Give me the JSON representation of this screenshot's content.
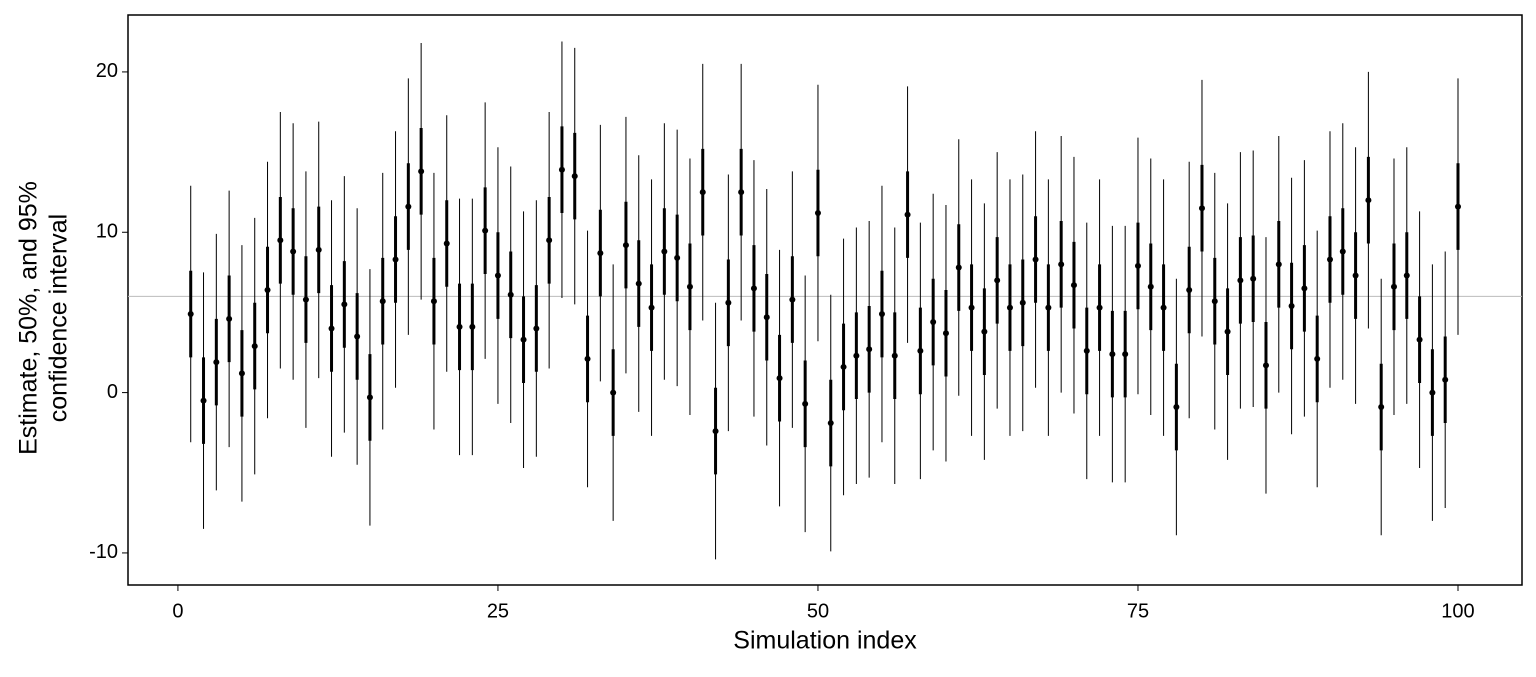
{
  "chart_data": {
    "type": "interval",
    "x_label": "Simulation index",
    "y_label": [
      "Estimate, 50%, and 95%",
      "confidence interval"
    ],
    "x": [
      1,
      2,
      3,
      4,
      5,
      6,
      7,
      8,
      9,
      10,
      11,
      12,
      13,
      14,
      15,
      16,
      17,
      18,
      19,
      20,
      21,
      22,
      23,
      24,
      25,
      26,
      27,
      28,
      29,
      30,
      31,
      32,
      33,
      34,
      35,
      36,
      37,
      38,
      39,
      40,
      41,
      42,
      43,
      44,
      45,
      46,
      47,
      48,
      49,
      50,
      51,
      52,
      53,
      54,
      55,
      56,
      57,
      58,
      59,
      60,
      61,
      62,
      63,
      64,
      65,
      66,
      67,
      68,
      69,
      70,
      71,
      72,
      73,
      74,
      75,
      76,
      77,
      78,
      79,
      80,
      81,
      82,
      83,
      84,
      85,
      86,
      87,
      88,
      89,
      90,
      91,
      92,
      93,
      94,
      95,
      96,
      97,
      98,
      99,
      100
    ],
    "values": [
      4.9,
      -0.5,
      1.9,
      4.6,
      1.2,
      2.9,
      6.4,
      9.5,
      8.8,
      5.8,
      8.9,
      4.0,
      5.5,
      3.5,
      -0.3,
      5.7,
      8.3,
      11.6,
      13.8,
      5.7,
      9.3,
      4.1,
      4.1,
      10.1,
      7.3,
      6.1,
      3.3,
      4.0,
      9.5,
      13.9,
      13.5,
      2.1,
      8.7,
      0.0,
      9.2,
      6.8,
      5.3,
      8.8,
      8.4,
      6.6,
      12.5,
      -2.4,
      5.6,
      12.5,
      6.5,
      4.7,
      0.9,
      5.8,
      -0.7,
      11.2,
      -1.9,
      1.6,
      2.3,
      2.7,
      4.9,
      2.3,
      11.1,
      2.6,
      4.4,
      3.7,
      7.8,
      5.3,
      3.8,
      7.0,
      5.3,
      5.6,
      8.3,
      5.3,
      8.0,
      6.7,
      2.6,
      5.3,
      2.4,
      2.4,
      7.9,
      6.6,
      5.3,
      -0.9,
      6.4,
      11.5,
      5.7,
      3.8,
      7.0,
      7.1,
      1.7,
      8.0,
      5.4,
      6.5,
      2.1,
      8.3,
      8.8,
      7.3,
      12.0,
      -0.9,
      6.6,
      7.3,
      3.3,
      0.0,
      0.8,
      11.6
    ],
    "ci50_error": 2.7,
    "ci95_error": 8.0,
    "hline": 6,
    "color": "#000000",
    "hline_color": "#bbbbbb",
    "xlim": [
      -3.9,
      105
    ],
    "ylim": [
      -12,
      23.55
    ],
    "xticks": [
      0,
      25,
      50,
      75,
      100
    ],
    "yticks": [
      -10,
      0,
      10,
      20
    ]
  }
}
